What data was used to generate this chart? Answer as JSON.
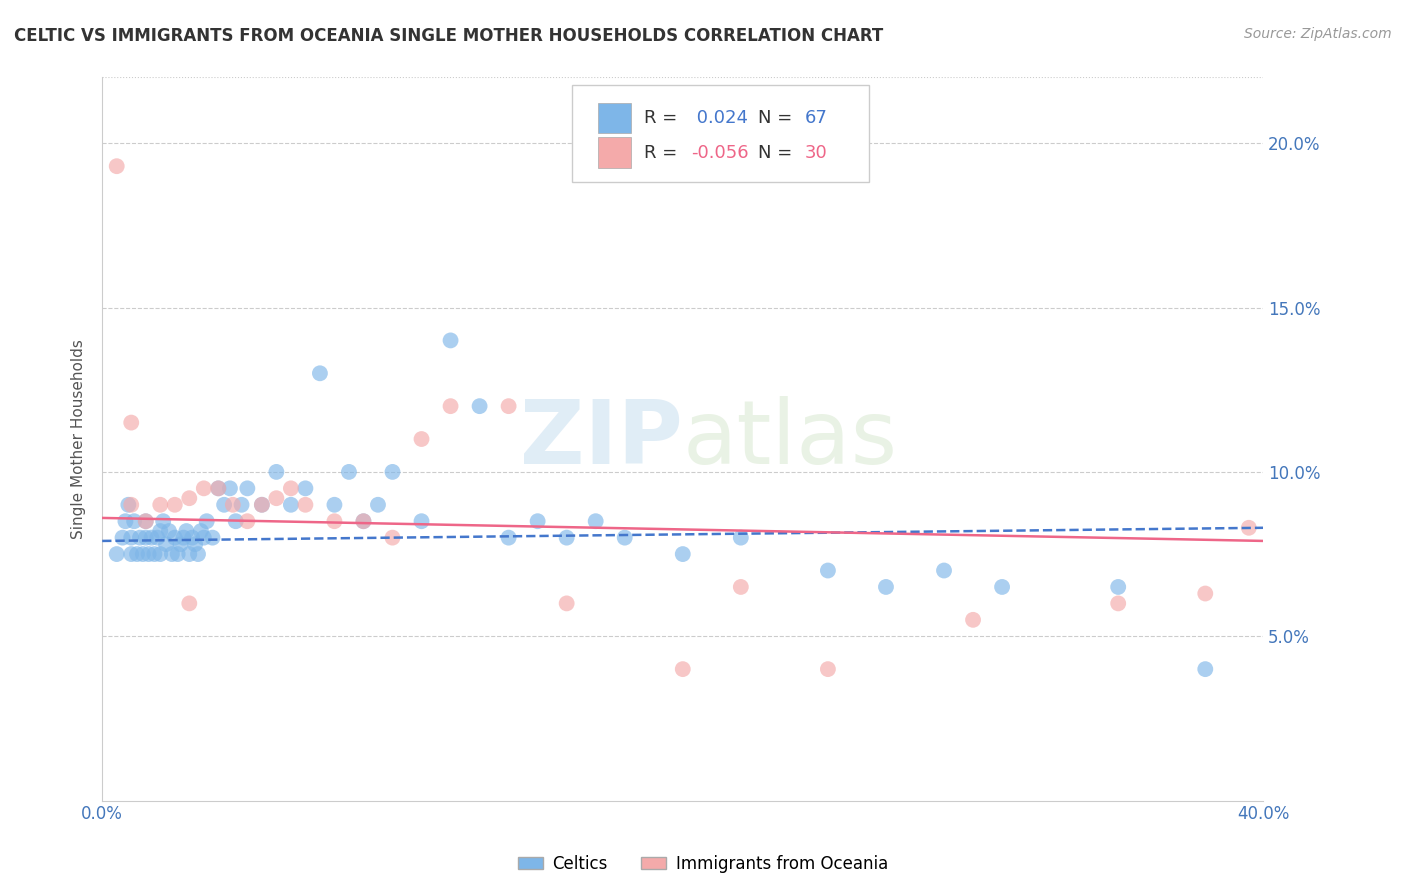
{
  "title": "CELTIC VS IMMIGRANTS FROM OCEANIA SINGLE MOTHER HOUSEHOLDS CORRELATION CHART",
  "source": "Source: ZipAtlas.com",
  "ylabel": "Single Mother Households",
  "xlim": [
    0.0,
    0.4
  ],
  "ylim": [
    0.0,
    0.22
  ],
  "ytick_vals": [
    0.05,
    0.1,
    0.15,
    0.2
  ],
  "xtick_vals": [
    0.0,
    0.05,
    0.1,
    0.15,
    0.2,
    0.25,
    0.3,
    0.35,
    0.4
  ],
  "celtics_color": "#7EB6E8",
  "oceania_color": "#F4AAAA",
  "celtics_line_color": "#4477CC",
  "oceania_line_color": "#EE6688",
  "R_celtics": 0.024,
  "N_celtics": 67,
  "R_oceania": -0.056,
  "N_oceania": 30,
  "legend_label_celtics": "Celtics",
  "legend_label_oceania": "Immigrants from Oceania",
  "watermark_zip": "ZIP",
  "watermark_atlas": "atlas",
  "celtics_x": [
    0.005,
    0.007,
    0.008,
    0.009,
    0.01,
    0.01,
    0.011,
    0.012,
    0.013,
    0.014,
    0.015,
    0.015,
    0.016,
    0.017,
    0.018,
    0.019,
    0.02,
    0.02,
    0.021,
    0.022,
    0.023,
    0.024,
    0.025,
    0.026,
    0.027,
    0.028,
    0.029,
    0.03,
    0.031,
    0.032,
    0.033,
    0.034,
    0.035,
    0.036,
    0.038,
    0.04,
    0.042,
    0.044,
    0.046,
    0.048,
    0.05,
    0.055,
    0.06,
    0.065,
    0.07,
    0.075,
    0.08,
    0.085,
    0.09,
    0.095,
    0.1,
    0.11,
    0.12,
    0.13,
    0.14,
    0.15,
    0.16,
    0.17,
    0.18,
    0.2,
    0.22,
    0.25,
    0.27,
    0.29,
    0.31,
    0.35,
    0.38
  ],
  "celtics_y": [
    0.075,
    0.08,
    0.085,
    0.09,
    0.075,
    0.08,
    0.085,
    0.075,
    0.08,
    0.075,
    0.085,
    0.08,
    0.075,
    0.08,
    0.075,
    0.08,
    0.075,
    0.082,
    0.085,
    0.078,
    0.082,
    0.075,
    0.08,
    0.075,
    0.078,
    0.08,
    0.082,
    0.075,
    0.08,
    0.078,
    0.075,
    0.082,
    0.08,
    0.085,
    0.08,
    0.095,
    0.09,
    0.095,
    0.085,
    0.09,
    0.095,
    0.09,
    0.1,
    0.09,
    0.095,
    0.13,
    0.09,
    0.1,
    0.085,
    0.09,
    0.1,
    0.085,
    0.14,
    0.12,
    0.08,
    0.085,
    0.08,
    0.085,
    0.08,
    0.075,
    0.08,
    0.07,
    0.065,
    0.07,
    0.065,
    0.065,
    0.04
  ],
  "oceania_x": [
    0.005,
    0.01,
    0.015,
    0.02,
    0.025,
    0.03,
    0.035,
    0.04,
    0.045,
    0.05,
    0.055,
    0.06,
    0.065,
    0.07,
    0.08,
    0.09,
    0.1,
    0.11,
    0.12,
    0.14,
    0.16,
    0.2,
    0.22,
    0.25,
    0.3,
    0.35,
    0.38,
    0.395,
    0.01,
    0.03
  ],
  "oceania_y": [
    0.193,
    0.09,
    0.085,
    0.09,
    0.09,
    0.092,
    0.095,
    0.095,
    0.09,
    0.085,
    0.09,
    0.092,
    0.095,
    0.09,
    0.085,
    0.085,
    0.08,
    0.11,
    0.12,
    0.12,
    0.06,
    0.04,
    0.065,
    0.04,
    0.055,
    0.06,
    0.063,
    0.083,
    0.115,
    0.06
  ]
}
